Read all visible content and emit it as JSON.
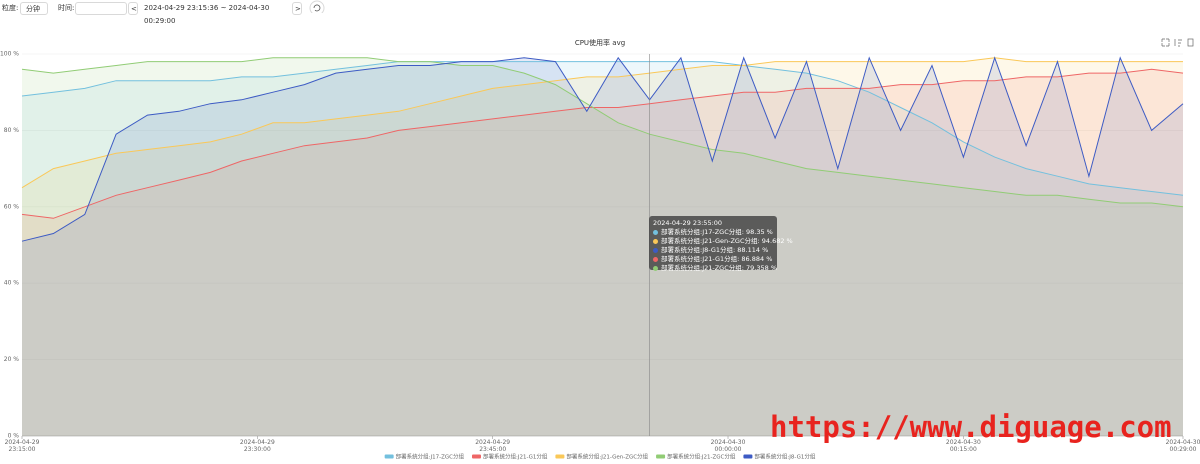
{
  "toolbar": {
    "granularity_label": "粒度:",
    "granularity": "分钟",
    "time_label": "时间:",
    "prev": "<",
    "range": "2024-04-29 23:15:36 ~ 2024-04-30 00:29:00",
    "next": ">"
  },
  "chart_data": {
    "type": "line",
    "title": "CPU使用率 avg",
    "x": [
      "2024-04-29 23:15:00",
      "2024-04-29 23:17:00",
      "2024-04-29 23:19:00",
      "2024-04-29 23:21:00",
      "2024-04-29 23:23:00",
      "2024-04-29 23:25:00",
      "2024-04-29 23:27:00",
      "2024-04-29 23:29:00",
      "2024-04-29 23:31:00",
      "2024-04-29 23:33:00",
      "2024-04-29 23:35:00",
      "2024-04-29 23:37:00",
      "2024-04-29 23:39:00",
      "2024-04-29 23:41:00",
      "2024-04-29 23:43:00",
      "2024-04-29 23:45:00",
      "2024-04-29 23:47:00",
      "2024-04-29 23:49:00",
      "2024-04-29 23:51:00",
      "2024-04-29 23:53:00",
      "2024-04-29 23:55:00",
      "2024-04-29 23:57:00",
      "2024-04-29 23:59:00",
      "2024-04-30 00:01:00",
      "2024-04-30 00:03:00",
      "2024-04-30 00:05:00",
      "2024-04-30 00:07:00",
      "2024-04-30 00:09:00",
      "2024-04-30 00:11:00",
      "2024-04-30 00:13:00",
      "2024-04-30 00:15:00",
      "2024-04-30 00:17:00",
      "2024-04-30 00:19:00",
      "2024-04-30 00:21:00",
      "2024-04-30 00:23:00",
      "2024-04-30 00:25:00",
      "2024-04-30 00:27:00",
      "2024-04-30 00:29:00"
    ],
    "xlim": [
      "2024-04-29 23:15:00",
      "2024-04-30 00:29:00"
    ],
    "xticks": [
      "2024-04-29 23:15:00",
      "2024-04-29 23:30:00",
      "2024-04-29 23:45:00",
      "2024-04-30 00:00:00",
      "2024-04-30 00:15:00",
      "2024-04-30 00:29:00"
    ],
    "ylim": [
      0,
      100
    ],
    "yticks": [
      {
        "value": 0,
        "label": "0 %"
      },
      {
        "value": 20,
        "label": "20 %"
      },
      {
        "value": 40,
        "label": "40 %"
      },
      {
        "value": 60,
        "label": "60 %"
      },
      {
        "value": 80,
        "label": "80 %"
      },
      {
        "value": 100,
        "label": "100 %"
      }
    ],
    "grid": true,
    "area": true,
    "legend": "bottom",
    "series": [
      {
        "name": "部署系统分组:J17-ZGC分组",
        "color": "#73c0de",
        "values": [
          89,
          90,
          91,
          93,
          93,
          93,
          93,
          94,
          94,
          95,
          96,
          97,
          98,
          98,
          98,
          98,
          98,
          98,
          98,
          98,
          98,
          98,
          98,
          97,
          96,
          95,
          93,
          90,
          86,
          82,
          77,
          73,
          70,
          68,
          66,
          65,
          64,
          63
        ]
      },
      {
        "name": "部署系统分组:J21-G1分组",
        "color": "#ee6666",
        "values": [
          58,
          57,
          60,
          63,
          65,
          67,
          69,
          72,
          74,
          76,
          77,
          78,
          80,
          81,
          82,
          83,
          84,
          85,
          86,
          86,
          87,
          88,
          89,
          90,
          90,
          91,
          91,
          91,
          92,
          92,
          93,
          93,
          94,
          94,
          95,
          95,
          96,
          95
        ]
      },
      {
        "name": "部署系统分组:J21-Gen-ZGC分组",
        "color": "#fac858",
        "values": [
          65,
          70,
          72,
          74,
          75,
          76,
          77,
          79,
          82,
          82,
          83,
          84,
          85,
          87,
          89,
          91,
          92,
          93,
          94,
          94,
          95,
          96,
          97,
          97,
          98,
          98,
          98,
          98,
          98,
          98,
          98,
          99,
          98,
          98,
          98,
          98,
          98,
          98
        ]
      },
      {
        "name": "部署系统分组:J21-ZGC分组",
        "color": "#91cc75",
        "values": [
          96,
          95,
          96,
          97,
          98,
          98,
          98,
          98,
          99,
          99,
          99,
          99,
          98,
          98,
          97,
          97,
          95,
          92,
          87,
          82,
          79,
          77,
          75,
          74,
          72,
          70,
          69,
          68,
          67,
          66,
          65,
          64,
          63,
          63,
          62,
          61,
          61,
          60
        ]
      },
      {
        "name": "部署系统分组:J8-G1分组",
        "color": "#3d5bc4",
        "values": [
          51,
          53,
          58,
          79,
          84,
          85,
          87,
          88,
          90,
          92,
          95,
          96,
          97,
          97,
          98,
          98,
          99,
          98,
          85,
          99,
          88,
          99,
          72,
          99,
          78,
          98,
          70,
          99,
          80,
          97,
          73,
          99,
          76,
          98,
          68,
          99,
          80,
          87
        ]
      }
    ]
  },
  "tooltip": {
    "time": "2024-04-29 23:55:00",
    "items": [
      {
        "text": "部署系统分组:J17-ZGC分组: 98.35 %",
        "color": "#73c0de"
      },
      {
        "text": "部署系统分组:J21-Gen-ZGC分组: 94.682 %",
        "color": "#fac858"
      },
      {
        "text": "部署系统分组:J8-G1分组: 88.114 %",
        "color": "#3d5bc4"
      },
      {
        "text": "部署系统分组:J21-G1分组: 86.884 %",
        "color": "#ee6666"
      },
      {
        "text": "部署系统分组:J21-ZGC分组: 79.358 %",
        "color": "#91cc75"
      }
    ]
  },
  "watermark": "https://www.diguage.com"
}
